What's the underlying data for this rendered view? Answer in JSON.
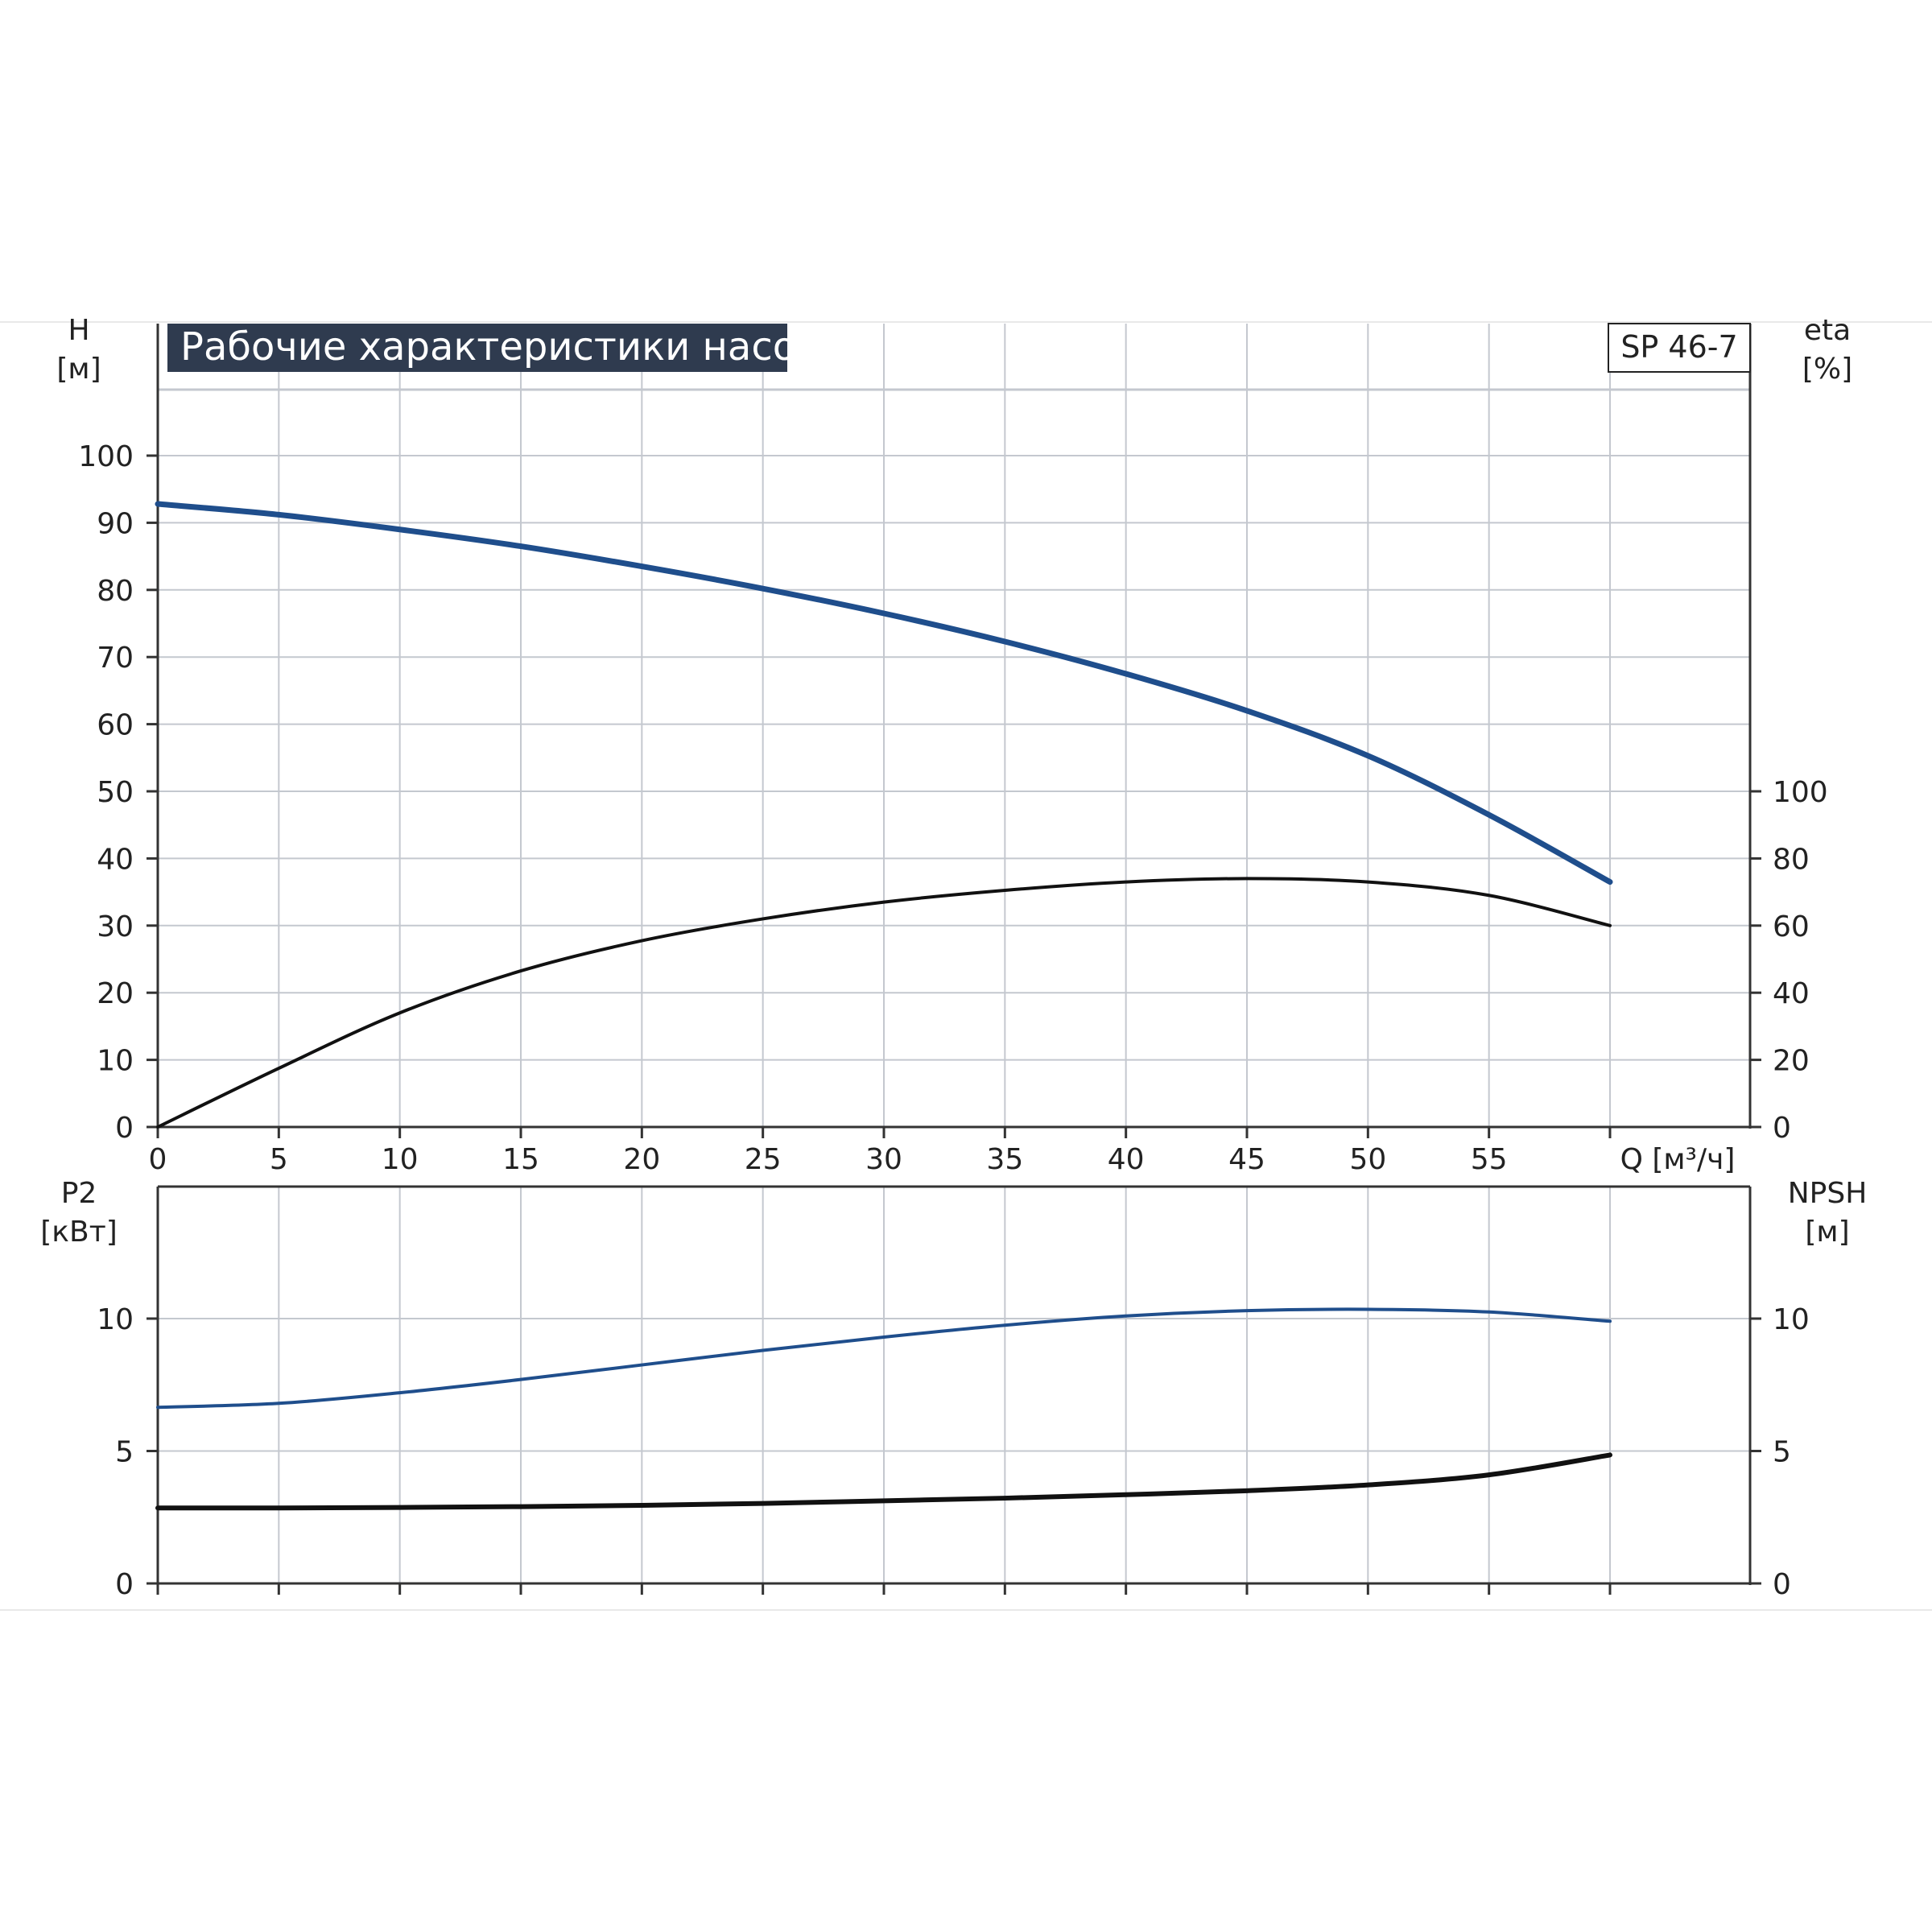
{
  "title": "Рабочие характеристики насоса",
  "model": "SP 46-7",
  "colors": {
    "head_curve": "#1f4e8c",
    "power_curve": "#1f4e8c",
    "efficiency_curve": "#111111",
    "npsh_curve": "#111111",
    "grid": "#c4c8cf",
    "title_bg": "#2f3b4f"
  },
  "chart_data": [
    {
      "type": "line",
      "panel": "top",
      "x_label": "Q [м³/ч]",
      "x_ticks": [
        "0",
        "5",
        "10",
        "15",
        "20",
        "25",
        "30",
        "35",
        "40",
        "45",
        "50",
        "55"
      ],
      "xlim": [
        0,
        60
      ],
      "y_left_label": [
        "H",
        "[м]"
      ],
      "y_left_ticks": [
        "0",
        "10",
        "20",
        "30",
        "40",
        "50",
        "60",
        "70",
        "80",
        "90",
        "100"
      ],
      "ylim_left": [
        0,
        100
      ],
      "y_right_label": [
        "eta",
        "[%]"
      ],
      "y_right_ticks": [
        "0",
        "20",
        "40",
        "60",
        "80",
        "100"
      ],
      "ylim_right": [
        0,
        100
      ],
      "grid": true,
      "series": [
        {
          "axis": "left",
          "color": "#1f4e8c",
          "x": [
            0,
            5,
            10,
            15,
            20,
            25,
            30,
            35,
            40,
            45,
            50,
            55,
            60
          ],
          "y": [
            92.8,
            91.2,
            89,
            86.5,
            83.5,
            80.2,
            76.5,
            72.3,
            67.5,
            62,
            55.3,
            46.5,
            36.5
          ]
        },
        {
          "axis": "right",
          "color": "#111111",
          "x": [
            0,
            5,
            10,
            15,
            20,
            25,
            30,
            35,
            40,
            45,
            50,
            55,
            60
          ],
          "y": [
            0,
            17.5,
            34,
            46.5,
            55.5,
            62,
            67,
            70.5,
            73,
            74,
            73,
            69,
            60
          ]
        }
      ]
    },
    {
      "type": "line",
      "panel": "bottom",
      "xlim": [
        0,
        60
      ],
      "y_left_label": [
        "P2",
        "[кВт]"
      ],
      "y_left_ticks": [
        "0",
        "5",
        "10"
      ],
      "ylim_left": [
        0,
        15
      ],
      "y_right_label": [
        "NPSH",
        "[м]"
      ],
      "y_right_ticks": [
        "0",
        "5",
        "10"
      ],
      "ylim_right": [
        0,
        15
      ],
      "grid": true,
      "series": [
        {
          "axis": "left",
          "color": "#1f4e8c",
          "x": [
            0,
            5,
            10,
            15,
            20,
            25,
            30,
            35,
            40,
            45,
            50,
            55,
            60
          ],
          "y": [
            6.65,
            6.8,
            7.2,
            7.7,
            8.25,
            8.8,
            9.3,
            9.75,
            10.1,
            10.3,
            10.35,
            10.25,
            9.9
          ]
        },
        {
          "axis": "right",
          "color": "#111111",
          "x": [
            0,
            5,
            10,
            15,
            20,
            25,
            30,
            35,
            40,
            45,
            50,
            55,
            60
          ],
          "y": [
            2.85,
            2.85,
            2.87,
            2.9,
            2.95,
            3.02,
            3.12,
            3.22,
            3.35,
            3.5,
            3.72,
            4.1,
            4.85
          ]
        }
      ]
    }
  ]
}
